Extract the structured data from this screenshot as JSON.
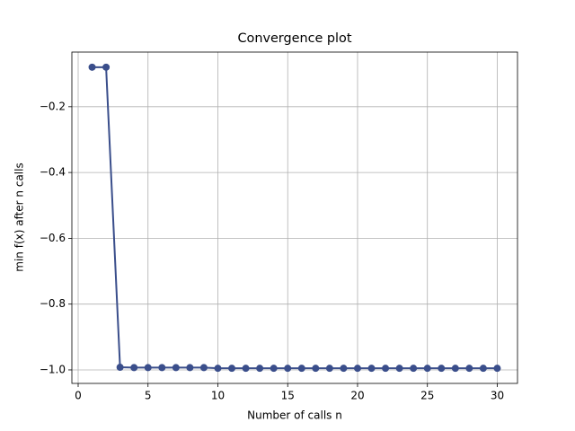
{
  "chart_data": {
    "type": "line",
    "title": "Convergence plot",
    "xlabel": "Number of calls n",
    "ylabel": "min f(x) after n calls",
    "x": [
      1,
      2,
      3,
      4,
      5,
      6,
      7,
      8,
      9,
      10,
      11,
      12,
      13,
      14,
      15,
      16,
      17,
      18,
      19,
      20,
      21,
      22,
      23,
      24,
      25,
      26,
      27,
      28,
      29,
      30
    ],
    "series": [
      {
        "color": "#3a4e8b",
        "values": [
          -0.08,
          -0.08,
          -0.992,
          -0.993,
          -0.993,
          -0.993,
          -0.993,
          -0.993,
          -0.993,
          -0.995,
          -0.995,
          -0.995,
          -0.995,
          -0.995,
          -0.995,
          -0.995,
          -0.995,
          -0.995,
          -0.995,
          -0.995,
          -0.995,
          -0.995,
          -0.995,
          -0.995,
          -0.995,
          -0.995,
          -0.995,
          -0.995,
          -0.995,
          -0.995
        ]
      }
    ],
    "xlim": [
      -0.45,
      31.45
    ],
    "ylim": [
      -1.041,
      -0.034
    ],
    "xticks": [
      0,
      5,
      10,
      15,
      20,
      25,
      30
    ],
    "yticks": [
      {
        "value": -1.0,
        "label": "−1.0"
      },
      {
        "value": -0.8,
        "label": "−0.8"
      },
      {
        "value": -0.6,
        "label": "−0.6"
      },
      {
        "value": -0.4,
        "label": "−0.4"
      },
      {
        "value": -0.2,
        "label": "−0.2"
      }
    ],
    "grid": true
  }
}
